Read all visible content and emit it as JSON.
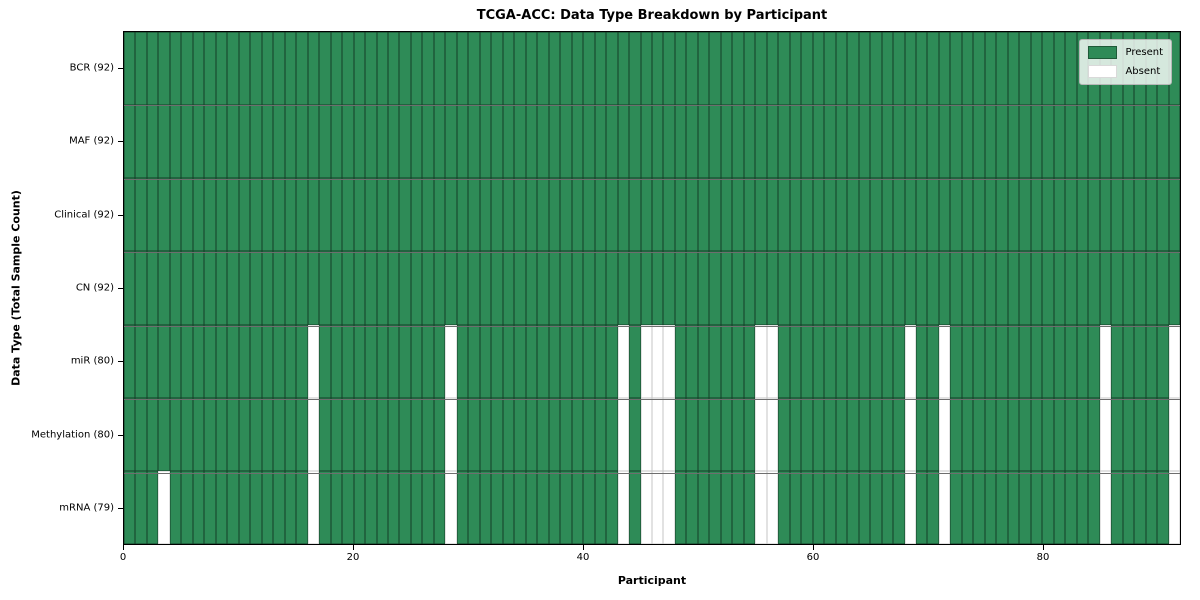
{
  "title": "TCGA-ACC: Data Type Breakdown by Participant",
  "colors": {
    "present": "#2e8b57",
    "absent": "#ffffff",
    "row_separator": "#6e6e6e",
    "frame": "#000000",
    "legend_bg": "rgba(255,255,255,0.8)",
    "legend_border": "#b7b7b7"
  },
  "chart_data": {
    "type": "heatmap",
    "title": "TCGA-ACC: Data Type Breakdown by Participant",
    "xlabel": "Participant",
    "ylabel": "Data Type (Total Sample Count)",
    "x_ticks": [
      0,
      20,
      40,
      60,
      80
    ],
    "x_range": [
      0,
      92
    ],
    "n_participants": 92,
    "grid": true,
    "legend_position": "upper right",
    "legend": [
      {
        "label": "Present",
        "color": "#2e8b57"
      },
      {
        "label": "Absent",
        "color": "#ffffff"
      }
    ],
    "rows": [
      {
        "label": "BCR (92)",
        "data_type": "BCR",
        "present_count": 92,
        "absent_participants": []
      },
      {
        "label": "MAF (92)",
        "data_type": "MAF",
        "present_count": 92,
        "absent_participants": []
      },
      {
        "label": "Clinical (92)",
        "data_type": "Clinical",
        "present_count": 92,
        "absent_participants": []
      },
      {
        "label": "CN (92)",
        "data_type": "CN",
        "present_count": 92,
        "absent_participants": []
      },
      {
        "label": "miR (80)",
        "data_type": "miR",
        "present_count": 80,
        "absent_participants": [
          16,
          28,
          43,
          45,
          46,
          47,
          55,
          56,
          68,
          71,
          85,
          91
        ]
      },
      {
        "label": "Methylation (80)",
        "data_type": "Methylation",
        "present_count": 80,
        "absent_participants": [
          16,
          28,
          43,
          45,
          46,
          47,
          55,
          56,
          68,
          71,
          85,
          91
        ]
      },
      {
        "label": "mRNA (79)",
        "data_type": "mRNA",
        "present_count": 79,
        "absent_participants": [
          3,
          16,
          28,
          43,
          45,
          46,
          47,
          55,
          56,
          68,
          71,
          85,
          91
        ]
      }
    ]
  }
}
